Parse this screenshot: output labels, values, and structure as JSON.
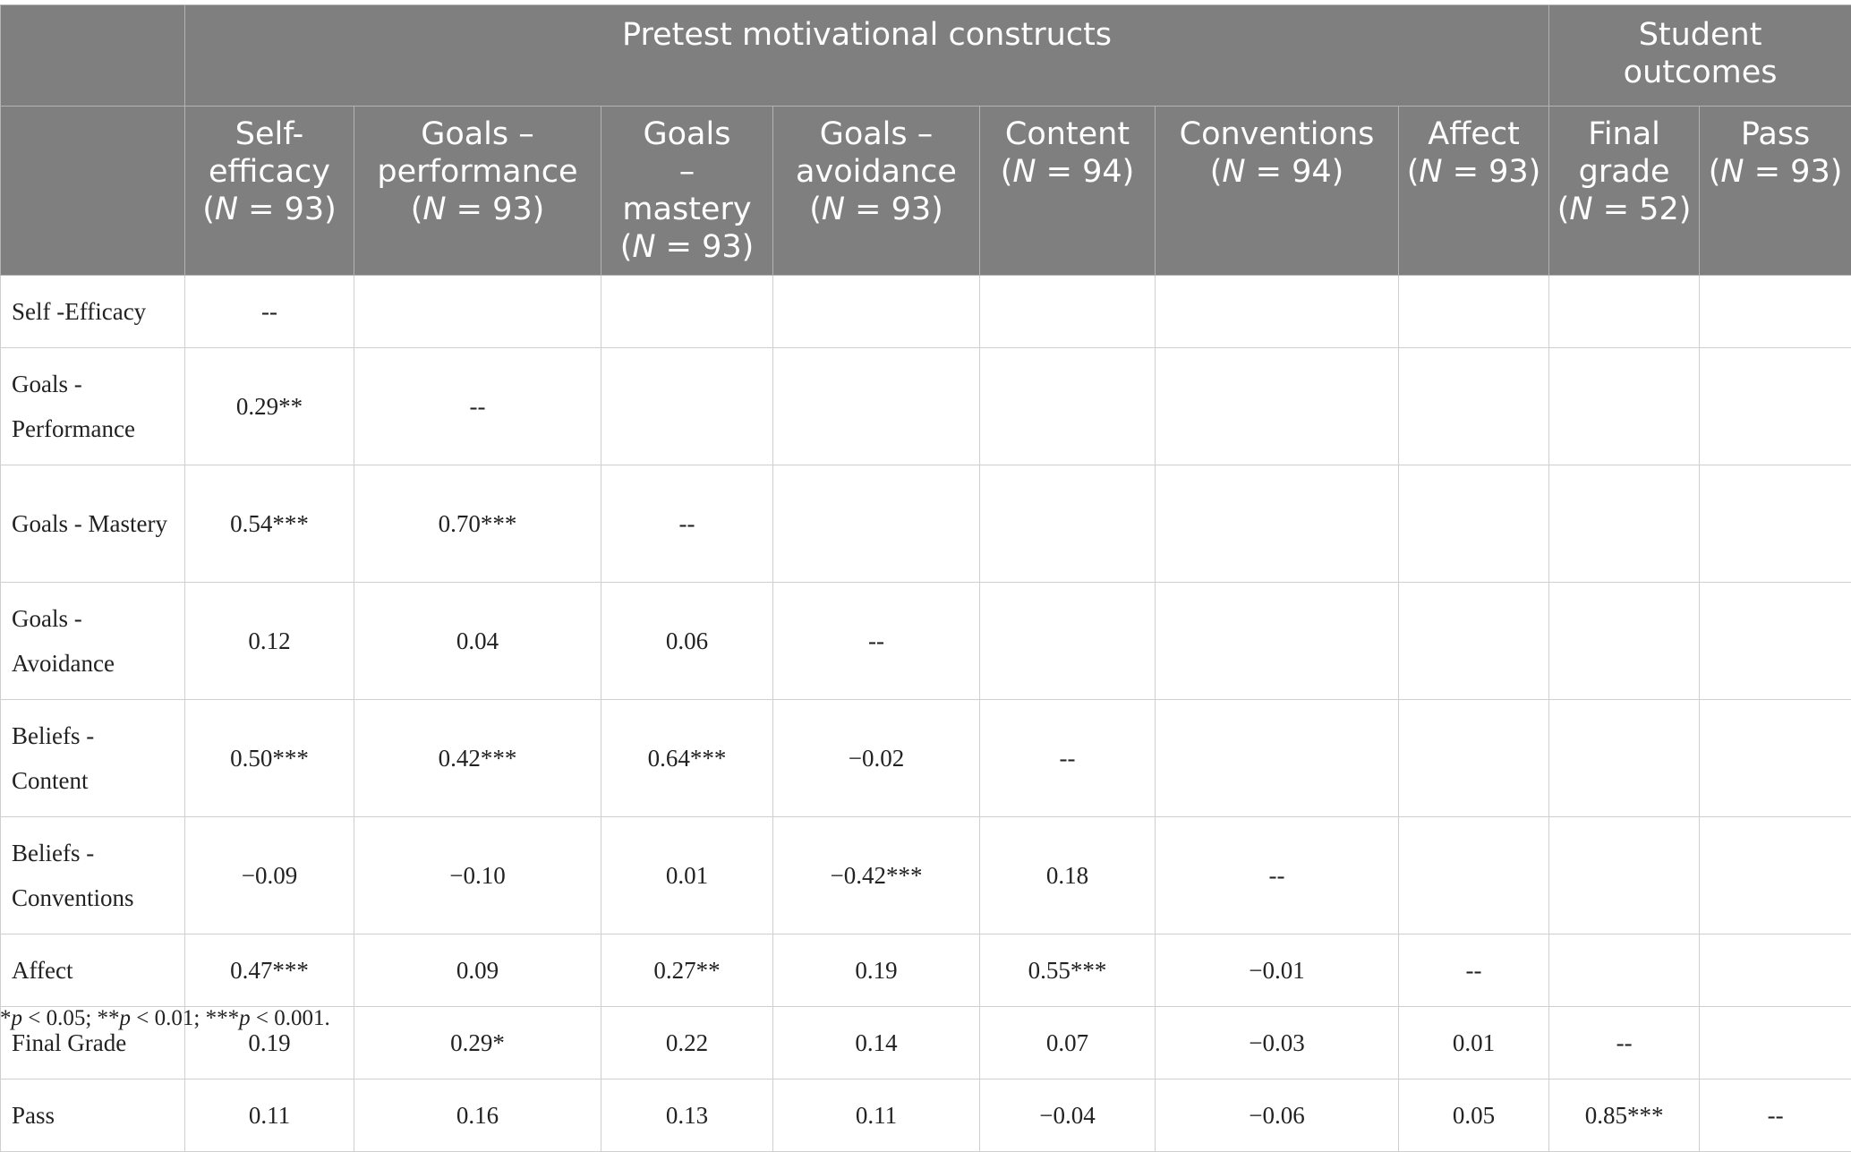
{
  "table": {
    "group_headers": {
      "motivational": "Pretest motivational constructs",
      "outcomes": "Student outcomes"
    },
    "columns": [
      {
        "lines": [
          "Self-",
          "efficacy"
        ],
        "n": "(N = 93)"
      },
      {
        "lines": [
          "Goals –",
          "performance"
        ],
        "n": "(N = 93)"
      },
      {
        "lines": [
          "Goals",
          "–",
          "mastery"
        ],
        "n": "(N = 93)"
      },
      {
        "lines": [
          "Goals –",
          "avoidance"
        ],
        "n": "(N = 93)"
      },
      {
        "lines": [
          "Content"
        ],
        "n": "(N = 94)"
      },
      {
        "lines": [
          "Conventions"
        ],
        "n": "(N = 94)"
      },
      {
        "lines": [
          "Affect"
        ],
        "n": "(N = 93)"
      },
      {
        "lines": [
          "Final",
          "grade"
        ],
        "n": "(N = 52)"
      },
      {
        "lines": [
          "Pass"
        ],
        "n": "(N = 93)"
      }
    ],
    "rows": [
      {
        "label": "Self -Efficacy",
        "cells": [
          "--",
          "",
          "",
          "",
          "",
          "",
          "",
          "",
          ""
        ]
      },
      {
        "label": "Goals - Performance",
        "cells": [
          "0.29**",
          "--",
          "",
          "",
          "",
          "",
          "",
          "",
          ""
        ]
      },
      {
        "label": "Goals - Mastery",
        "cells": [
          "0.54***",
          "0.70***",
          "--",
          "",
          "",
          "",
          "",
          "",
          ""
        ]
      },
      {
        "label": "Goals - Avoidance",
        "cells": [
          "0.12",
          "0.04",
          "0.06",
          "--",
          "",
          "",
          "",
          "",
          ""
        ]
      },
      {
        "label": "Beliefs - Content",
        "cells": [
          "0.50***",
          "0.42***",
          "0.64***",
          "−0.02",
          "--",
          "",
          "",
          "",
          ""
        ]
      },
      {
        "label": "Beliefs -Conventions",
        "cells": [
          "−0.09",
          "−0.10",
          "0.01",
          "−0.42***",
          "0.18",
          "--",
          "",
          "",
          ""
        ]
      },
      {
        "label": "Affect",
        "cells": [
          "0.47***",
          "0.09",
          "0.27**",
          "0.19",
          "0.55***",
          "−0.01",
          "--",
          "",
          ""
        ]
      },
      {
        "label": "Final Grade",
        "cells": [
          "0.19",
          "0.29*",
          "0.22",
          "0.14",
          "0.07",
          "−0.03",
          "0.01",
          "--",
          ""
        ]
      },
      {
        "label": "Pass",
        "cells": [
          "0.11",
          "0.16",
          "0.13",
          "0.11",
          "−0.04",
          "−0.06",
          "0.05",
          "0.85***",
          "--"
        ]
      }
    ]
  },
  "footnote": "*p < 0.05; **p < 0.01; ***p < 0.001."
}
